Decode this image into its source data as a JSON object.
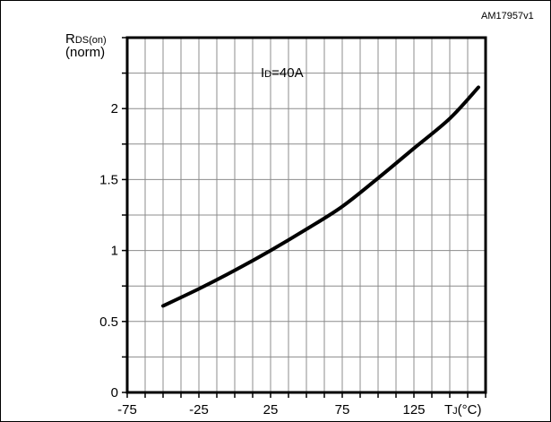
{
  "figure_id": "AM17957v1",
  "chart_data": {
    "type": "line",
    "ylabel_main": "R",
    "ylabel_sub": "DS(on)",
    "ylabel_line2": "(norm)",
    "xlabel_main": "T",
    "xlabel_sub": "J",
    "xlabel_unit": "(°C)",
    "annotation_main": "I",
    "annotation_sub": "D",
    "annotation_value": "=40A",
    "xlim": [
      -75,
      175
    ],
    "ylim": [
      0,
      2.5
    ],
    "x_tick_values": [
      -75,
      -25,
      25,
      75,
      125
    ],
    "x_tick_labels": [
      "-75",
      "-25",
      "25",
      "75",
      "125"
    ],
    "y_tick_values": [
      0,
      0.5,
      1,
      1.5,
      2
    ],
    "y_tick_labels": [
      "0",
      "0.5",
      "1",
      "1.5",
      "2"
    ],
    "grid": true,
    "series": [
      {
        "x": [
          -50,
          -25,
          0,
          25,
          50,
          75,
          100,
          125,
          150
        ],
        "y": [
          0.61,
          0.73,
          0.86,
          1.0,
          1.15,
          1.31,
          1.51,
          1.72,
          1.93
        ]
      }
    ],
    "series_end": {
      "x": 170,
      "y": 2.15
    }
  }
}
